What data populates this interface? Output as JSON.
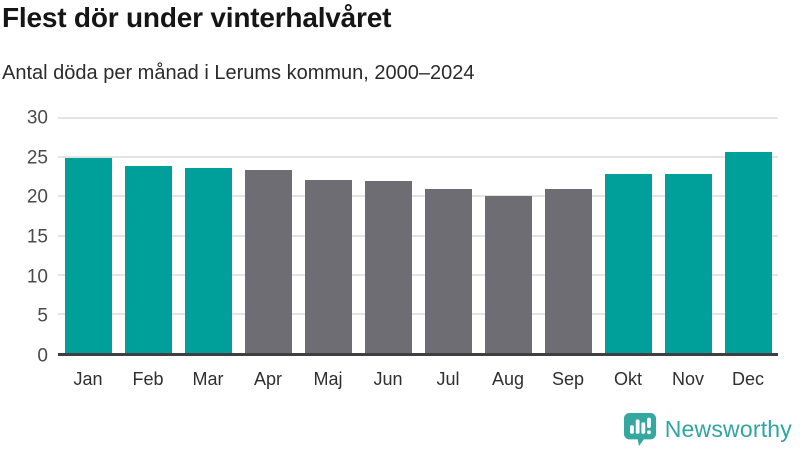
{
  "header": {
    "title": "Flest dör under vinterhalvåret",
    "subtitle": "Antal döda per månad i Lerums kommun, 2000–2024"
  },
  "chart_data": {
    "type": "bar",
    "title": "Flest dör under vinterhalvåret",
    "subtitle": "Antal döda per månad i Lerums kommun, 2000–2024",
    "categories": [
      "Jan",
      "Feb",
      "Mar",
      "Apr",
      "Maj",
      "Jun",
      "Jul",
      "Aug",
      "Sep",
      "Okt",
      "Nov",
      "Dec"
    ],
    "values": [
      24.9,
      23.9,
      23.6,
      23.3,
      22.1,
      21.9,
      21.0,
      20.1,
      20.9,
      22.9,
      22.9,
      25.7
    ],
    "bar_color_keys": [
      "teal",
      "teal",
      "teal",
      "gray",
      "gray",
      "gray",
      "gray",
      "gray",
      "gray",
      "teal",
      "teal",
      "teal"
    ],
    "colors": {
      "teal": "#00a09a",
      "gray": "#6e6d73"
    },
    "xlabel": "",
    "ylabel": "",
    "ylim": [
      0,
      30
    ],
    "yticks": [
      0,
      5,
      10,
      15,
      20,
      25,
      30
    ],
    "grid": "horizontal",
    "legend": "none"
  },
  "footer": {
    "logo_text": "Newsworthy",
    "logo_color": "#2fa5a0",
    "logo_icon_color": "#35a7a1"
  }
}
